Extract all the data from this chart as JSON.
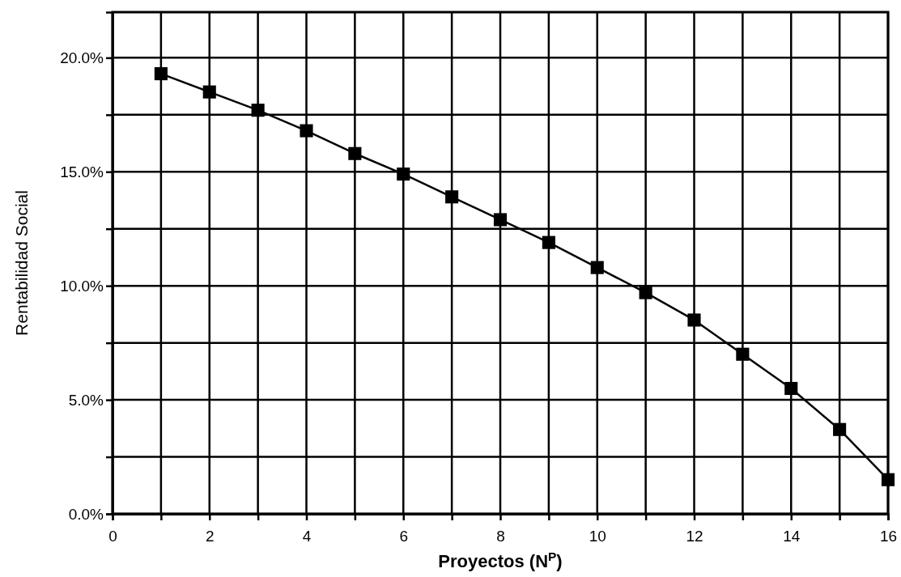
{
  "chart_data": {
    "type": "line",
    "xlabel": "Proyectos (N$^{P}$)",
    "ylabel": "Rentabilidad Social",
    "x": [
      1,
      2,
      3,
      4,
      5,
      6,
      7,
      8,
      9,
      10,
      11,
      12,
      13,
      14,
      15,
      16
    ],
    "series": [
      {
        "color": "#000000",
        "values": [
          19.3,
          18.5,
          17.7,
          16.8,
          15.8,
          14.9,
          13.9,
          12.9,
          11.9,
          10.8,
          9.7,
          8.5,
          7.0,
          5.5,
          3.7,
          1.5
        ]
      }
    ],
    "xlim": [
      0,
      16
    ],
    "xticks": [
      0,
      {
        "value": 1,
        "label": null
      },
      2,
      {
        "value": 3,
        "label": null
      },
      4,
      {
        "value": 5,
        "label": null
      },
      6,
      {
        "value": 7,
        "label": null
      },
      8,
      {
        "value": 9,
        "label": null
      },
      10,
      {
        "value": 11,
        "label": null
      },
      12,
      {
        "value": 13,
        "label": null
      },
      14,
      {
        "value": 15,
        "label": null
      },
      16
    ],
    "ylim": [
      0,
      22
    ],
    "yticks": [
      {
        "value": 0,
        "label": "0.0%"
      },
      {
        "value": 2.5,
        "label": null
      },
      {
        "value": 5,
        "label": "5.0%"
      },
      {
        "value": 7.5,
        "label": null
      },
      {
        "value": 10,
        "label": "10.0%"
      },
      {
        "value": 12.5,
        "label": null
      },
      {
        "value": 15,
        "label": "15.0%"
      },
      {
        "value": 17.5,
        "label": null
      },
      {
        "value": 20,
        "label": "20.0%"
      }
    ],
    "grid": true,
    "marker": "square",
    "line_style": "solid"
  }
}
